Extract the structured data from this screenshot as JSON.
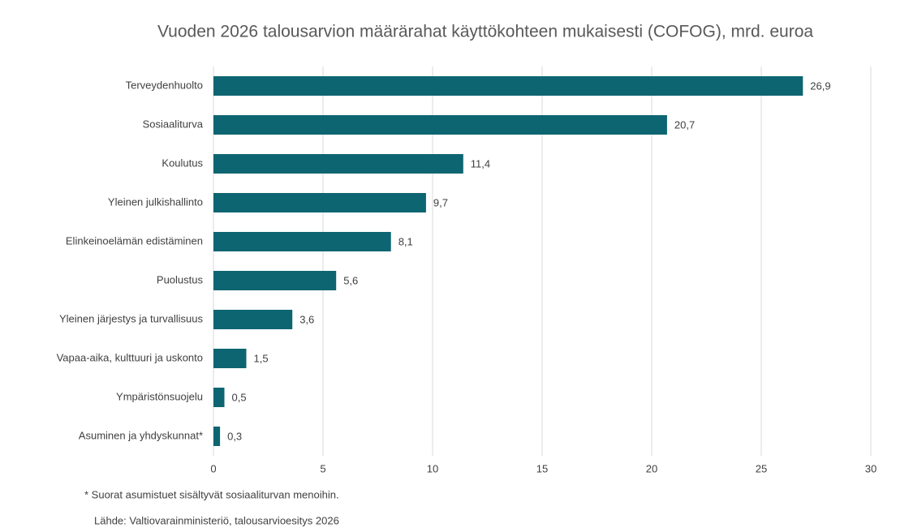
{
  "chart_data": {
    "type": "hbar",
    "title": "Vuoden 2026 talousarvion määrärahat käyttökohteen mukaisesti (COFOG), mrd. euroa",
    "categories": [
      "Terveydenhuolto",
      "Sosiaaliturva",
      "Koulutus",
      "Yleinen julkishallinto",
      "Elinkeinoelämän edistäminen",
      "Puolustus",
      "Yleinen järjestys ja turvallisuus",
      "Vapaa-aika, kulttuuri ja uskonto",
      "Ympäristönsuojelu",
      "Asuminen ja yhdyskunnat*"
    ],
    "values": [
      26.9,
      20.7,
      11.4,
      9.7,
      8.1,
      5.6,
      3.6,
      1.5,
      0.5,
      0.3
    ],
    "value_labels": [
      "26,9",
      "20,7",
      "11,4",
      "9,7",
      "8,1",
      "5,6",
      "3,6",
      "1,5",
      "0,5",
      "0,3"
    ],
    "color": "#0d6571",
    "xlim": [
      0,
      30
    ],
    "xticks": [
      0,
      5,
      10,
      15,
      20,
      25,
      30
    ],
    "grid": true,
    "footnote": "* Suorat asumistuet sisältyvät sosiaaliturvan menoihin.",
    "source": "Lähde: Valtiovarainministeriö, talousarvioesitys 2026"
  }
}
